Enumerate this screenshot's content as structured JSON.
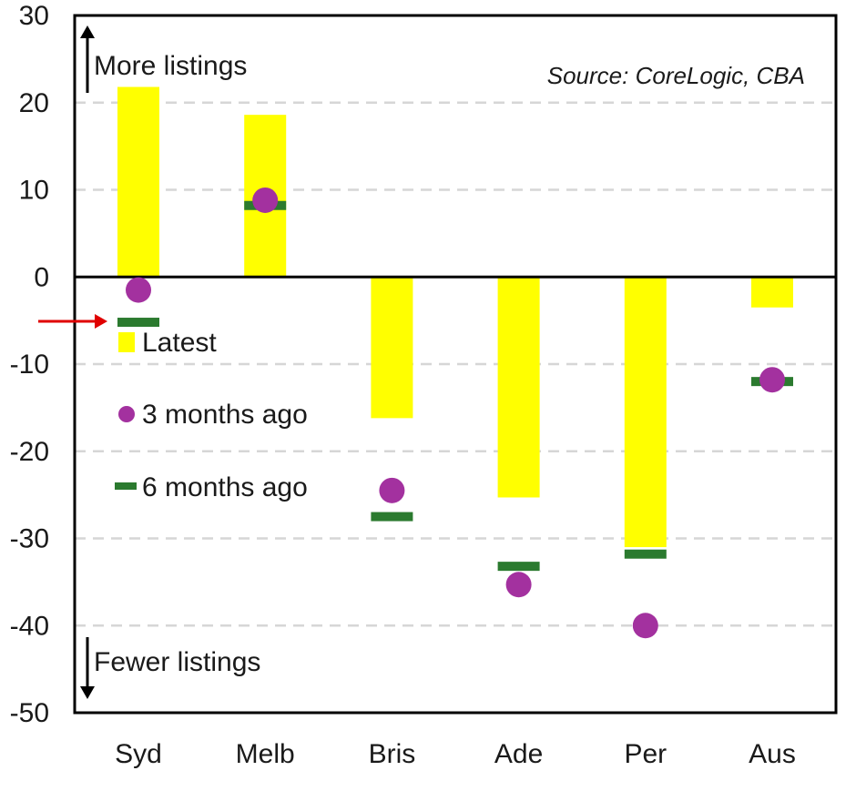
{
  "chart_data": {
    "type": "bar",
    "categories": [
      "Syd",
      "Melb",
      "Bris",
      "Ade",
      "Per",
      "Aus"
    ],
    "series": [
      {
        "name": "Latest",
        "kind": "bar",
        "values": [
          21.8,
          18.6,
          -16.2,
          -25.3,
          -31.0,
          -3.5
        ]
      },
      {
        "name": "3 months ago",
        "kind": "dot",
        "values": [
          -1.5,
          8.8,
          -24.5,
          -35.3,
          -40.0,
          -11.8
        ]
      },
      {
        "name": "6 months ago",
        "kind": "dash",
        "values": [
          -5.2,
          8.2,
          -27.5,
          -33.2,
          -31.8,
          -12.0
        ]
      }
    ],
    "y_ticks": [
      30,
      20,
      10,
      0,
      -10,
      -20,
      -30,
      -40,
      -50
    ],
    "ylim": [
      -50,
      30
    ],
    "grid": "horizontal dashed",
    "legend_position": "left-middle",
    "annotations": {
      "top": "More listings",
      "bottom": "Fewer listings",
      "source": "Source: CoreLogic, CBA"
    },
    "colors": {
      "bar": "#ffff00",
      "dot": "#a3319f",
      "dash": "#2b7a2f",
      "grid": "#d6d6d6",
      "arrow_marker": "#e00000"
    }
  }
}
